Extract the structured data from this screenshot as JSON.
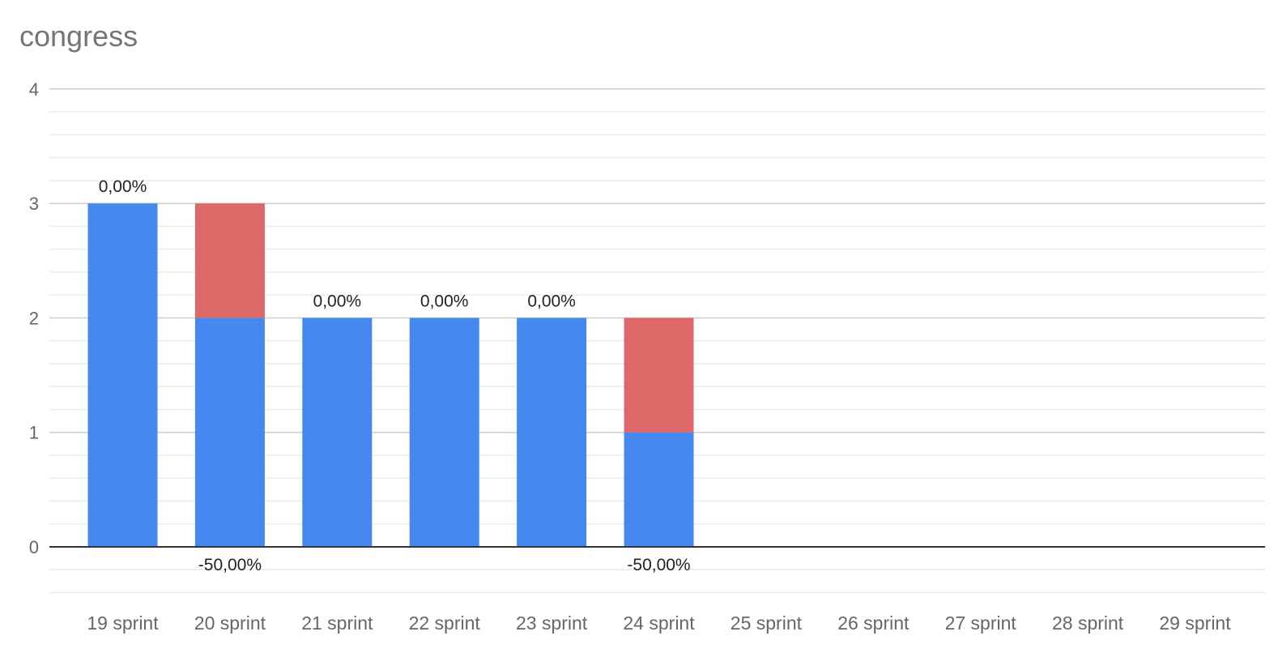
{
  "chart_data": {
    "type": "bar",
    "stacked": true,
    "title": "congress",
    "xlabel": "",
    "ylabel": "",
    "categories": [
      "19 sprint",
      "20 sprint",
      "21 sprint",
      "22 sprint",
      "23 sprint",
      "24 sprint",
      "25 sprint",
      "26 sprint",
      "27 sprint",
      "28 sprint",
      "29 sprint"
    ],
    "series": [
      {
        "color": "#4589F0",
        "values": [
          3,
          2,
          2,
          2,
          2,
          1,
          null,
          null,
          null,
          null,
          null
        ]
      },
      {
        "color": "#DE6868",
        "values": [
          0,
          1,
          0,
          0,
          0,
          1,
          null,
          null,
          null,
          null,
          null
        ]
      }
    ],
    "data_labels": [
      {
        "category": "19 sprint",
        "text": "0,00%",
        "position": "above"
      },
      {
        "category": "20 sprint",
        "text": "-50,00%",
        "position": "below"
      },
      {
        "category": "21 sprint",
        "text": "0,00%",
        "position": "above"
      },
      {
        "category": "22 sprint",
        "text": "0,00%",
        "position": "above"
      },
      {
        "category": "23 sprint",
        "text": "0,00%",
        "position": "above"
      },
      {
        "category": "24 sprint",
        "text": "-50,00%",
        "position": "below"
      }
    ],
    "y_ticks": [
      0,
      1,
      2,
      3,
      4
    ],
    "ylim": [
      -0.5,
      4
    ],
    "grid": true,
    "minor_grid": true,
    "legend": "none"
  }
}
